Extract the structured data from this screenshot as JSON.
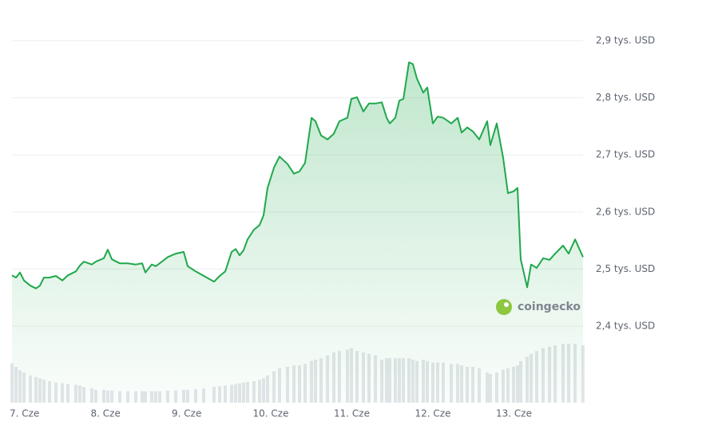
{
  "chart_data": {
    "type": "line",
    "x": [
      7.0,
      7.049,
      7.099,
      7.148,
      7.227,
      7.296,
      7.345,
      7.394,
      7.463,
      7.542,
      7.621,
      7.69,
      7.788,
      7.837,
      7.887,
      7.985,
      8.034,
      8.133,
      8.182,
      8.232,
      8.33,
      8.429,
      8.527,
      8.606,
      8.645,
      8.724,
      8.773,
      8.823,
      8.921,
      9.02,
      9.118,
      9.167,
      9.266,
      9.365,
      9.493,
      9.562,
      9.631,
      9.709,
      9.759,
      9.808,
      9.857,
      9.906,
      9.985,
      10.054,
      10.103,
      10.153,
      10.232,
      10.3,
      10.399,
      10.478,
      10.547,
      10.616,
      10.695,
      10.744,
      10.813,
      10.892,
      10.97,
      11.039,
      11.138,
      11.187,
      11.256,
      11.335,
      11.404,
      11.483,
      11.562,
      11.621,
      11.66,
      11.729,
      11.778,
      11.828,
      11.897,
      11.946,
      11.995,
      12.074,
      12.123,
      12.192,
      12.251,
      12.32,
      12.419,
      12.498,
      12.547,
      12.616,
      12.685,
      12.764,
      12.862,
      12.901,
      12.98,
      13.059,
      13.118,
      13.187,
      13.236,
      13.276,
      13.355,
      13.404,
      13.473,
      13.552,
      13.631,
      13.7,
      13.798,
      13.867,
      13.946,
      14.044
    ],
    "values": [
      2489,
      2485,
      2494,
      2480,
      2471,
      2466,
      2471,
      2485,
      2485,
      2488,
      2480,
      2489,
      2496,
      2506,
      2513,
      2508,
      2513,
      2519,
      2534,
      2517,
      2510,
      2510,
      2508,
      2510,
      2494,
      2508,
      2505,
      2510,
      2521,
      2527,
      2530,
      2505,
      2496,
      2488,
      2478,
      2488,
      2496,
      2530,
      2535,
      2524,
      2533,
      2552,
      2569,
      2577,
      2594,
      2642,
      2678,
      2697,
      2684,
      2667,
      2671,
      2686,
      2765,
      2759,
      2734,
      2727,
      2737,
      2759,
      2765,
      2798,
      2801,
      2776,
      2790,
      2790,
      2792,
      2765,
      2755,
      2765,
      2795,
      2798,
      2862,
      2859,
      2834,
      2809,
      2818,
      2755,
      2767,
      2765,
      2755,
      2765,
      2739,
      2748,
      2741,
      2727,
      2759,
      2717,
      2755,
      2695,
      2633,
      2636,
      2642,
      2517,
      2468,
      2508,
      2502,
      2519,
      2516,
      2527,
      2541,
      2527,
      2552,
      2521
    ],
    "color": "#1fa84c",
    "volume": [
      55,
      50,
      45,
      42,
      38,
      36,
      34,
      32,
      30,
      28,
      27,
      26,
      25,
      24,
      22,
      20,
      18,
      18,
      17,
      17,
      16,
      16,
      16,
      16,
      16,
      16,
      16,
      16,
      17,
      17,
      18,
      18,
      19,
      20,
      22,
      23,
      24,
      25,
      26,
      27,
      28,
      29,
      30,
      32,
      34,
      38,
      44,
      48,
      50,
      52,
      52,
      54,
      58,
      60,
      62,
      66,
      70,
      72,
      74,
      76,
      72,
      70,
      68,
      66,
      60,
      62,
      62,
      62,
      62,
      62,
      62,
      60,
      58,
      60,
      58,
      56,
      56,
      56,
      54,
      54,
      52,
      50,
      50,
      48,
      42,
      40,
      42,
      46,
      48,
      50,
      52,
      58,
      64,
      68,
      72,
      76,
      78,
      80,
      82,
      82,
      82,
      80
    ],
    "volume_color": "#e3e6ea",
    "y2lim": [
      0,
      100
    ],
    "xlim": [
      7,
      14.044
    ],
    "xticks": [
      {
        "value": 7,
        "label": "7. Cze"
      },
      {
        "value": 8,
        "label": "8. Cze"
      },
      {
        "value": 9,
        "label": "9. Cze"
      },
      {
        "value": 10,
        "label": "10. Cze"
      },
      {
        "value": 11,
        "label": "11. Cze"
      },
      {
        "value": 12,
        "label": "12. Cze"
      },
      {
        "value": 13,
        "label": "13. Cze"
      }
    ],
    "ylim": [
      2400,
      2900
    ],
    "yticks": [
      {
        "value": 2400,
        "label": "2,4 tys. USD"
      },
      {
        "value": 2500,
        "label": "2,5 tys. USD"
      },
      {
        "value": 2600,
        "label": "2,6 tys. USD"
      },
      {
        "value": 2700,
        "label": "2,7 tys. USD"
      },
      {
        "value": 2800,
        "label": "2,8 tys. USD"
      },
      {
        "value": 2900,
        "label": "2,9 tys. USD"
      }
    ],
    "grid": true,
    "watermark": "coingecko"
  }
}
